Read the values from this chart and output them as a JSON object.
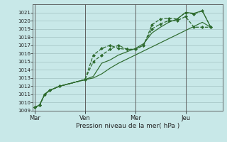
{
  "bg_color": "#c8e8e8",
  "grid_color": "#a8c8c8",
  "line_color": "#2d6a2d",
  "marker_color": "#2d6a2d",
  "xlabel": "Pression niveau de la mer( hPa )",
  "ylim": [
    1009,
    1022
  ],
  "yticks": [
    1009,
    1010,
    1011,
    1012,
    1013,
    1014,
    1015,
    1016,
    1017,
    1018,
    1019,
    1020,
    1021
  ],
  "day_labels": [
    "Mar",
    "Ven",
    "Mer",
    "Jeu"
  ],
  "day_positions": [
    0,
    3,
    6,
    9
  ],
  "xlim": [
    -0.1,
    11.2
  ],
  "lines": [
    {
      "x": [
        0.0,
        0.3,
        0.6,
        0.9,
        1.5,
        3.0,
        3.5,
        4.0,
        4.5,
        5.0,
        5.5,
        6.0,
        6.5,
        7.0,
        7.5,
        8.0,
        8.5,
        9.0,
        9.5,
        10.0,
        10.5
      ],
      "y": [
        1009.4,
        1009.7,
        1011.0,
        1011.5,
        1012.0,
        1012.8,
        1015.0,
        1015.8,
        1016.5,
        1017.0,
        1016.5,
        1016.5,
        1017.0,
        1019.5,
        1020.2,
        1020.3,
        1020.2,
        1021.0,
        1020.8,
        1021.2,
        1019.2
      ],
      "marker": true,
      "linestyle": "--"
    },
    {
      "x": [
        0.0,
        0.3,
        0.6,
        0.9,
        1.5,
        3.0,
        3.5,
        4.0,
        4.5,
        5.0,
        5.5,
        6.0,
        6.5,
        7.0,
        7.5,
        8.0,
        8.5,
        9.0,
        9.5,
        10.0,
        10.5
      ],
      "y": [
        1009.4,
        1009.7,
        1011.0,
        1011.5,
        1012.0,
        1012.8,
        1015.8,
        1016.6,
        1017.0,
        1016.6,
        1016.5,
        1016.5,
        1017.0,
        1019.0,
        1019.6,
        1020.0,
        1020.0,
        1020.5,
        1019.2,
        1019.2,
        1019.2
      ],
      "marker": true,
      "linestyle": "--"
    },
    {
      "x": [
        0.0,
        0.3,
        0.6,
        0.9,
        1.5,
        3.0,
        3.5,
        4.0,
        4.5,
        5.0,
        5.5,
        6.0,
        6.5,
        7.0,
        7.5,
        8.0,
        8.5,
        9.0,
        9.5,
        10.0,
        10.5
      ],
      "y": [
        1009.4,
        1009.7,
        1011.0,
        1011.5,
        1012.0,
        1012.8,
        1013.2,
        1014.8,
        1015.2,
        1015.8,
        1016.2,
        1016.6,
        1017.2,
        1018.5,
        1019.2,
        1019.8,
        1020.2,
        1021.0,
        1020.9,
        1021.2,
        1019.2
      ],
      "marker": false,
      "linestyle": "-"
    },
    {
      "x": [
        0.0,
        0.3,
        0.6,
        0.9,
        1.5,
        3.0,
        3.5,
        4.0,
        4.5,
        5.0,
        5.5,
        6.0,
        6.5,
        7.0,
        7.5,
        8.0,
        8.5,
        9.0,
        9.5,
        10.0,
        10.5
      ],
      "y": [
        1009.4,
        1009.7,
        1011.0,
        1011.5,
        1012.0,
        1012.8,
        1013.0,
        1013.5,
        1014.2,
        1014.8,
        1015.3,
        1015.8,
        1016.3,
        1016.8,
        1017.3,
        1017.8,
        1018.3,
        1018.8,
        1019.3,
        1019.8,
        1019.2
      ],
      "marker": false,
      "linestyle": "-"
    }
  ]
}
